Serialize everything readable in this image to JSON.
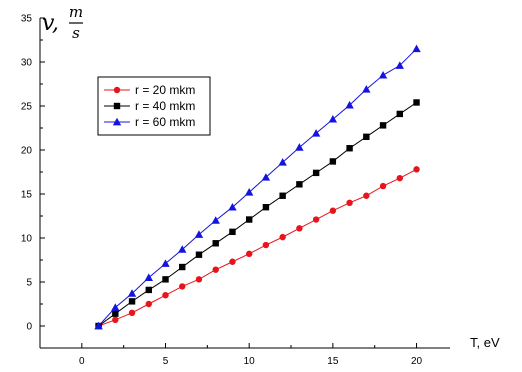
{
  "chart_data": {
    "type": "line",
    "xlabel": "T, eV",
    "ylabel": {
      "symbol": "v,",
      "numerator": "m",
      "denominator": "s"
    },
    "xlim": [
      -2.5,
      22
    ],
    "ylim": [
      -2.5,
      35
    ],
    "x_ticks": [
      0,
      5,
      10,
      15,
      20
    ],
    "x_minor_step": 2.5,
    "y_ticks": [
      0,
      5,
      10,
      15,
      20,
      25,
      30,
      35
    ],
    "y_minor_step": 2.5,
    "grid": false,
    "legend_position": "top-left",
    "x": [
      1,
      2,
      3,
      4,
      5,
      6,
      7,
      8,
      9,
      10,
      11,
      12,
      13,
      14,
      15,
      16,
      17,
      18,
      19,
      20
    ],
    "series": [
      {
        "name": "r = 20 mkm",
        "color": "#e8141c",
        "marker": "circle",
        "values": [
          0,
          0.7,
          1.5,
          2.5,
          3.5,
          4.5,
          5.3,
          6.4,
          7.3,
          8.2,
          9.2,
          10.1,
          11.1,
          12.1,
          13.1,
          14.0,
          14.8,
          15.9,
          16.8,
          17.8
        ]
      },
      {
        "name": "r = 40 mkm",
        "color": "#000000",
        "marker": "square",
        "values": [
          0,
          1.4,
          2.8,
          4.1,
          5.3,
          6.7,
          8.1,
          9.4,
          10.7,
          12.1,
          13.5,
          14.8,
          16.1,
          17.4,
          18.7,
          20.2,
          21.5,
          22.8,
          24.1,
          25.4
        ]
      },
      {
        "name": "r = 60 mkm",
        "color": "#1414e0",
        "marker": "triangle",
        "values": [
          0,
          2.1,
          3.7,
          5.5,
          7.1,
          8.7,
          10.4,
          12.0,
          13.5,
          15.2,
          16.9,
          18.6,
          20.3,
          21.9,
          23.5,
          25.1,
          26.9,
          28.5,
          29.6,
          31.5
        ]
      }
    ]
  }
}
